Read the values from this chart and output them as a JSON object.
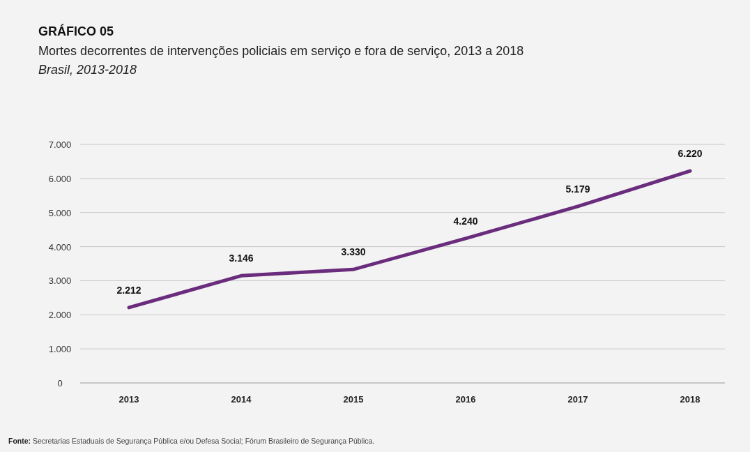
{
  "chart_data": {
    "type": "line",
    "title": "GRÁFICO 05",
    "subtitle": "Mortes decorrentes de intervenções policiais em serviço e fora de serviço, 2013 a 2018",
    "annotations": [
      "Brasil, 2013-2018",
      "Fonte: Secretarias Estaduais de Segurança Pública e/ou Defesa Social; Fórum Brasileiro de Segurança Pública."
    ],
    "categories": [
      "2013",
      "2014",
      "2015",
      "2016",
      "2017",
      "2018"
    ],
    "series": [
      {
        "color": "#6a2c7c",
        "values": [
          2212,
          3146,
          3330,
          4240,
          5179,
          6220
        ],
        "value_labels": [
          "2.212",
          "3.146",
          "3.330",
          "4.240",
          "5.179",
          "6.220"
        ]
      }
    ],
    "ylim": [
      0,
      7000
    ],
    "yticks": [
      0,
      {
        "value": 1000,
        "label": "1.000"
      },
      {
        "value": 2000,
        "label": "2.000"
      },
      {
        "value": 3000,
        "label": "3.000"
      },
      {
        "value": 4000,
        "label": "4.000"
      },
      {
        "value": 5000,
        "label": "5.000"
      },
      {
        "value": 6000,
        "label": "6.000"
      },
      {
        "value": 7000,
        "label": "7.000"
      }
    ],
    "grid": "y",
    "line_style": "solid",
    "marker": "none"
  }
}
